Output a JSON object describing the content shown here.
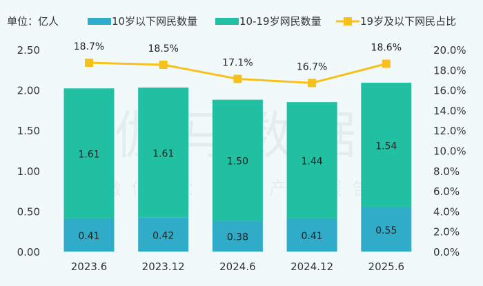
{
  "unit_label": "单位：亿人",
  "watermark": {
    "main": "伽马数据",
    "sub": "微信号：游戏产业报告"
  },
  "chart_data": {
    "type": "bar",
    "stacked": true,
    "categories": [
      "2023.6",
      "2023.12",
      "2024.6",
      "2024.12",
      "2025.6"
    ],
    "series": [
      {
        "name": "10岁以下网民数量",
        "type": "bar",
        "axis": "left",
        "color": "#31acc8",
        "values": [
          0.41,
          0.42,
          0.38,
          0.41,
          0.55
        ],
        "labels": [
          "0.41",
          "0.42",
          "0.38",
          "0.41",
          "0.55"
        ]
      },
      {
        "name": "10-19岁网民数量",
        "type": "bar",
        "axis": "left",
        "color": "#22c0a2",
        "values": [
          1.61,
          1.61,
          1.5,
          1.44,
          1.54
        ],
        "labels": [
          "1.61",
          "1.61",
          "1.50",
          "1.44",
          "1.54"
        ]
      },
      {
        "name": "19岁及以下网民占比",
        "type": "line",
        "axis": "right",
        "color": "#f8c01a",
        "marker": "square",
        "values": [
          18.7,
          18.5,
          17.1,
          16.7,
          18.6
        ],
        "labels": [
          "18.7%",
          "18.5%",
          "17.1%",
          "16.7%",
          "18.6%"
        ]
      }
    ],
    "left_axis": {
      "range": [
        0,
        2.5
      ],
      "ticks": [
        "0.00",
        "0.50",
        "1.00",
        "1.50",
        "2.00",
        "2.50"
      ]
    },
    "right_axis": {
      "range": [
        0,
        20
      ],
      "ticks": [
        "0.0%",
        "2.0%",
        "4.0%",
        "6.0%",
        "8.0%",
        "10.0%",
        "12.0%",
        "14.0%",
        "16.0%",
        "18.0%",
        "20.0%"
      ]
    },
    "grid": false,
    "legend_position": "top"
  }
}
